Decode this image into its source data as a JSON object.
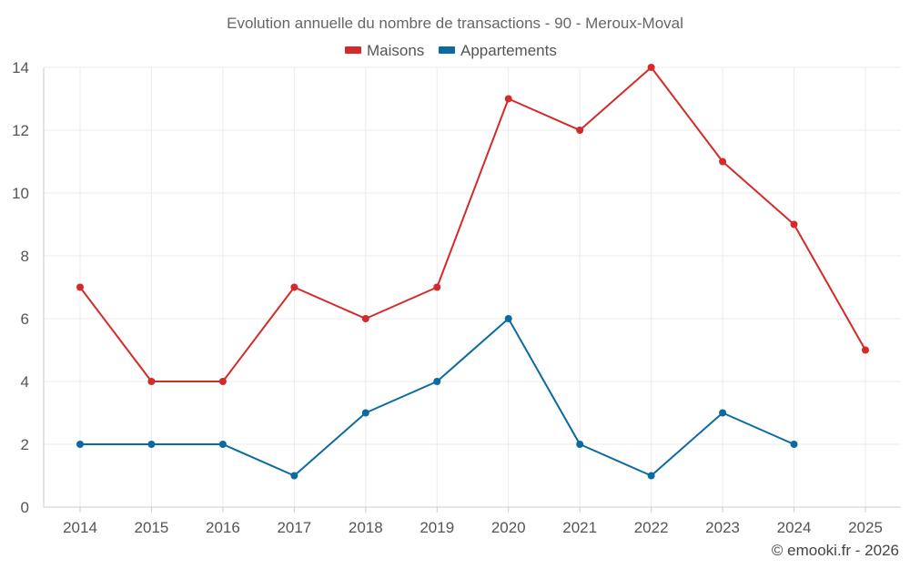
{
  "chart_data": {
    "type": "line",
    "title": "Evolution annuelle du nombre de transactions - 90 - Meroux-Moval",
    "categories": [
      "2014",
      "2015",
      "2016",
      "2017",
      "2018",
      "2019",
      "2020",
      "2021",
      "2022",
      "2023",
      "2024",
      "2025"
    ],
    "yticks": [
      "0",
      "2",
      "4",
      "6",
      "8",
      "10",
      "12",
      "14"
    ],
    "ylim": [
      0,
      14
    ],
    "xlabel": "",
    "ylabel": "",
    "grid": true,
    "legend_position": "top-center",
    "series": [
      {
        "name": "Maisons",
        "color": "#d42a2a",
        "values": [
          7,
          4,
          4,
          7,
          6,
          7,
          13,
          12,
          14,
          11,
          9,
          5
        ]
      },
      {
        "name": "Appartements",
        "color": "#0b6aa0",
        "values": [
          2,
          2,
          2,
          1,
          3,
          4,
          6,
          2,
          1,
          3,
          2,
          null
        ]
      }
    ]
  },
  "credit": "© emooki.fr - 2026"
}
